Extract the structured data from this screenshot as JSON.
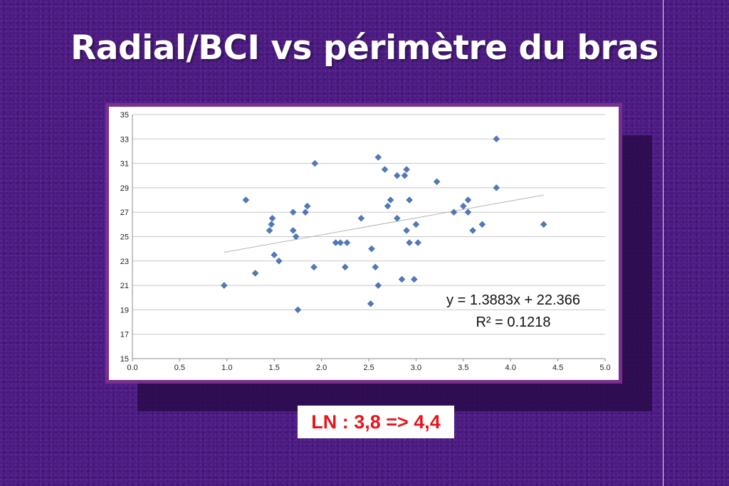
{
  "slide": {
    "title": "Radial/BCI vs périmètre du bras",
    "note": "LN : 3,8 => 4,4"
  },
  "colors": {
    "background": "#4a1a7e",
    "frame": "#7a2f8e",
    "marker": "#4f79b8",
    "note_text": "#e8141c"
  },
  "chart_data": {
    "type": "scatter",
    "xlim": [
      0,
      5
    ],
    "ylim": [
      15,
      35
    ],
    "x_ticks": [
      "0.0",
      "0.5",
      "1.0",
      "1.5",
      "2.0",
      "2.5",
      "3.0",
      "3.5",
      "4.0",
      "4.5",
      "5.0"
    ],
    "y_ticks": [
      "15",
      "17",
      "19",
      "21",
      "23",
      "25",
      "27",
      "29",
      "31",
      "33",
      "35"
    ],
    "grid": "horizontal",
    "legend": "none",
    "points": [
      [
        0.97,
        21
      ],
      [
        1.2,
        28
      ],
      [
        1.3,
        22
      ],
      [
        1.45,
        25.5
      ],
      [
        1.47,
        26
      ],
      [
        1.48,
        26.5
      ],
      [
        1.5,
        23.5
      ],
      [
        1.55,
        23
      ],
      [
        1.7,
        25.5
      ],
      [
        1.7,
        27
      ],
      [
        1.73,
        25
      ],
      [
        1.75,
        19
      ],
      [
        1.83,
        27
      ],
      [
        1.85,
        27.5
      ],
      [
        1.92,
        22.5
      ],
      [
        1.93,
        31
      ],
      [
        2.15,
        24.5
      ],
      [
        2.2,
        24.5
      ],
      [
        2.25,
        22.5
      ],
      [
        2.27,
        24.5
      ],
      [
        2.42,
        26.5
      ],
      [
        2.52,
        19.5
      ],
      [
        2.53,
        24
      ],
      [
        2.57,
        22.5
      ],
      [
        2.6,
        21
      ],
      [
        2.6,
        31.5
      ],
      [
        2.67,
        30.5
      ],
      [
        2.7,
        27.5
      ],
      [
        2.73,
        28
      ],
      [
        2.8,
        30
      ],
      [
        2.8,
        26.5
      ],
      [
        2.85,
        21.5
      ],
      [
        2.88,
        30
      ],
      [
        2.9,
        30.5
      ],
      [
        2.9,
        25.5
      ],
      [
        2.93,
        24.5
      ],
      [
        2.93,
        28
      ],
      [
        2.98,
        21.5
      ],
      [
        3.0,
        26
      ],
      [
        3.02,
        24.5
      ],
      [
        3.22,
        29.5
      ],
      [
        3.4,
        27
      ],
      [
        3.5,
        27.5
      ],
      [
        3.55,
        28
      ],
      [
        3.55,
        27
      ],
      [
        3.6,
        25.5
      ],
      [
        3.7,
        26
      ],
      [
        3.85,
        33
      ],
      [
        3.85,
        29
      ],
      [
        4.35,
        26
      ]
    ],
    "trendline": {
      "slope": 1.3883,
      "intercept": 22.366,
      "x_range": [
        0.97,
        4.35
      ]
    },
    "annotations": [
      "y = 1.3883x + 22.366",
      "R² = 0.1218"
    ]
  }
}
